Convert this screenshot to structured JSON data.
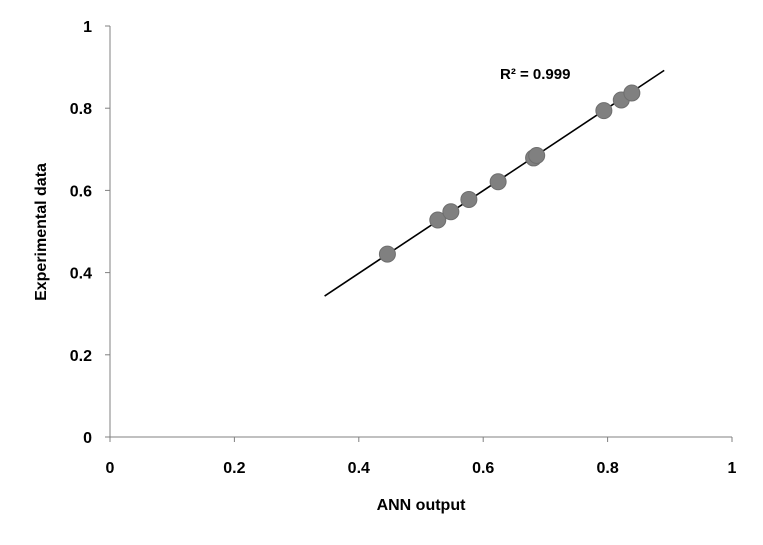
{
  "chart_data": {
    "type": "scatter",
    "title": "",
    "xlabel": "ANN output",
    "ylabel": "Experimental data",
    "xlim": [
      0,
      1
    ],
    "ylim": [
      0,
      1
    ],
    "x_ticks": [
      "0",
      "0.2",
      "0.4",
      "0.6",
      "0.8",
      "1"
    ],
    "y_ticks": [
      "0",
      "0.2",
      "0.4",
      "0.6",
      "0.8",
      "1"
    ],
    "grid": false,
    "legend": "none",
    "point_color": "#808080",
    "line_color": "#000000",
    "points": [
      {
        "x": 0.446,
        "y": 0.445
      },
      {
        "x": 0.527,
        "y": 0.528
      },
      {
        "x": 0.548,
        "y": 0.548
      },
      {
        "x": 0.577,
        "y": 0.578
      },
      {
        "x": 0.624,
        "y": 0.621
      },
      {
        "x": 0.681,
        "y": 0.679
      },
      {
        "x": 0.686,
        "y": 0.685
      },
      {
        "x": 0.794,
        "y": 0.794
      },
      {
        "x": 0.822,
        "y": 0.82
      },
      {
        "x": 0.839,
        "y": 0.837
      }
    ],
    "trendline": {
      "type": "linear",
      "x_start": 0.345,
      "y_start": 0.343,
      "x_end": 0.891,
      "y_end": 0.892
    },
    "annotation": "R² = 0.999"
  }
}
